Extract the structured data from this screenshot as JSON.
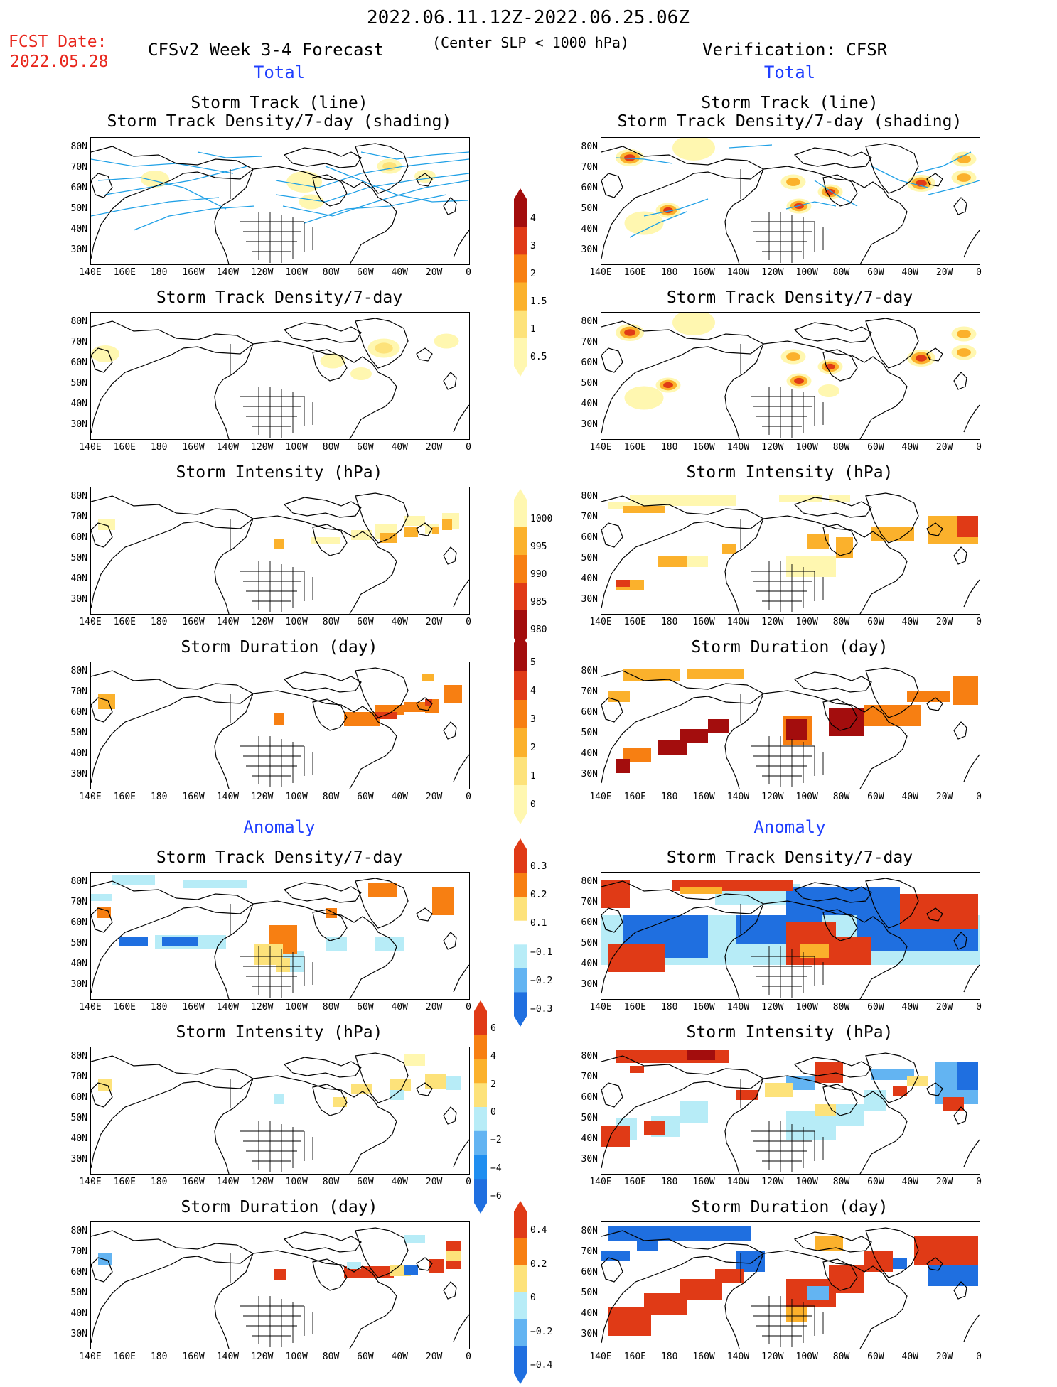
{
  "header": {
    "period": "2022.06.11.12Z-2022.06.25.06Z",
    "fcst_label": "FCST Date:",
    "fcst_date": "2022.05.28",
    "forecast_title": "CFSv2 Week 3-4 Forecast",
    "criterion": "(Center SLP < 1000 hPa)",
    "verification": "Verification: CFSR"
  },
  "sections": {
    "total_left": "Total",
    "total_right": "Total",
    "anomaly_left": "Anomaly",
    "anomaly_right": "Anomaly"
  },
  "panel_titles": {
    "track_line": "Storm Track (line)",
    "track_shading": "Storm Track Density/7-day (shading)",
    "density": "Storm Track Density/7-day",
    "intensity": "Storm Intensity (hPa)",
    "duration": "Storm Duration (day)"
  },
  "axes": {
    "lat_labels": [
      "80N",
      "70N",
      "60N",
      "50N",
      "40N",
      "30N"
    ],
    "lon_labels": [
      "140E",
      "160E",
      "180",
      "160W",
      "140W",
      "120W",
      "100W",
      "80W",
      "60W",
      "40W",
      "20W",
      "0"
    ]
  },
  "colorbars": {
    "density_total": [
      "4",
      "3",
      "2",
      "1.5",
      "1",
      "0.5"
    ],
    "intensity_total": [
      "1000",
      "995",
      "990",
      "985",
      "980"
    ],
    "duration_total": [
      "5",
      "4",
      "3",
      "2",
      "1",
      "0"
    ],
    "density_anomaly": [
      "0.3",
      "0.2",
      "0.1",
      "−0.1",
      "−0.2",
      "−0.3"
    ],
    "intensity_anomaly": [
      "6",
      "4",
      "2",
      "0",
      "−2",
      "−4",
      "−6"
    ],
    "duration_anomaly": [
      "0.4",
      "0.2",
      "0",
      "−0.2",
      "−0.4"
    ]
  },
  "colors": {
    "track_line": "#1fa0e6",
    "heading_blue": "#1f3fff",
    "heading_red": "#e8261c",
    "pale_yellow": "#fff7b0",
    "yellow": "#fde27a",
    "orange": "#fbb12c",
    "orange_dark": "#f77f12",
    "red": "#e03a16",
    "dark_red": "#a30d0d",
    "light_blue": "#b7ecf7",
    "mid_blue": "#63b4f2",
    "blue": "#1f6fe0"
  },
  "chart_data": {
    "type": "heatmap",
    "domain": {
      "lon_range": [
        "140E",
        "0"
      ],
      "lat_range": [
        "25N",
        "85N"
      ]
    },
    "columns": [
      "CFSv2 Week 3-4 Forecast",
      "Verification: CFSR"
    ],
    "panels": [
      "Storm Track (line) / Storm Track Density/7-day (shading)",
      "Storm Track Density/7-day",
      "Storm Intensity (hPa)",
      "Storm Duration (day)",
      "Anomaly Storm Track Density/7-day",
      "Anomaly Storm Intensity (hPa)",
      "Anomaly Storm Duration (day)"
    ]
  }
}
